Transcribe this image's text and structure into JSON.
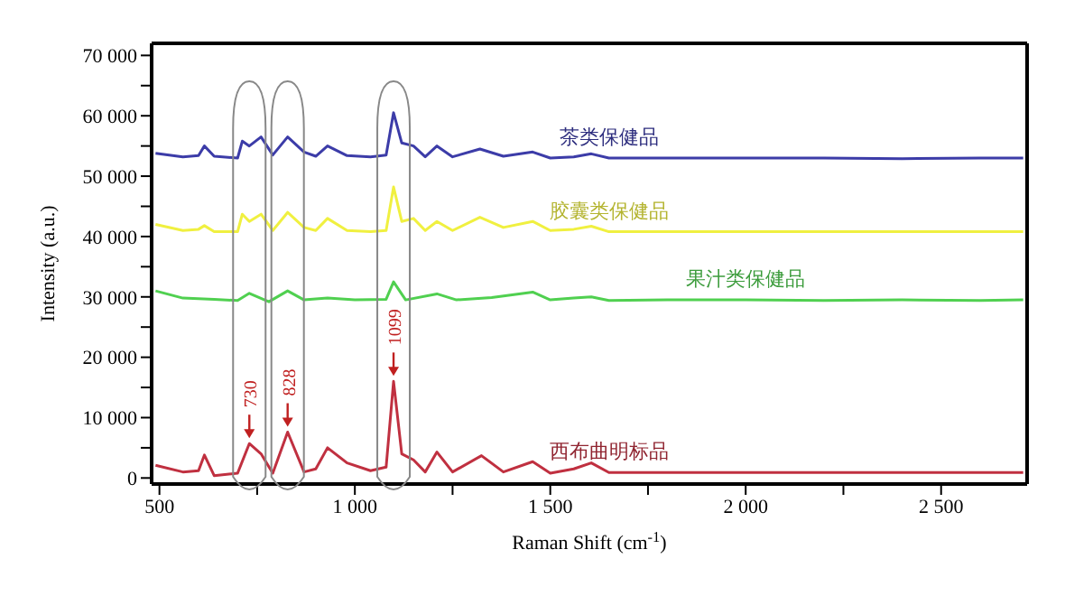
{
  "chart_data": {
    "type": "line",
    "xlabel": "Raman Shift (cm$^{-1}$)",
    "ylabel": "Intensity (a.u.)",
    "xlim": [
      480,
      2720
    ],
    "ylim": [
      -1000,
      72000
    ],
    "xticks": [
      {
        "value": 500,
        "label": "500"
      },
      {
        "value": 750,
        "label": null
      },
      {
        "value": 1000,
        "label": "1 000"
      },
      {
        "value": 1250,
        "label": null
      },
      {
        "value": 1500,
        "label": "1 500"
      },
      {
        "value": 1750,
        "label": null
      },
      {
        "value": 2000,
        "label": "2 000"
      },
      {
        "value": 2250,
        "label": null
      },
      {
        "value": 2500,
        "label": "2 500"
      }
    ],
    "yticks": [
      {
        "value": 0,
        "label": "0"
      },
      {
        "value": 5000,
        "label": null
      },
      {
        "value": 10000,
        "label": "10 000"
      },
      {
        "value": 15000,
        "label": null
      },
      {
        "value": 20000,
        "label": "20 000"
      },
      {
        "value": 25000,
        "label": null
      },
      {
        "value": 30000,
        "label": "30 000"
      },
      {
        "value": 35000,
        "label": null
      },
      {
        "value": 40000,
        "label": "40 000"
      },
      {
        "value": 45000,
        "label": null
      },
      {
        "value": 50000,
        "label": "50 000"
      },
      {
        "value": 55000,
        "label": null
      },
      {
        "value": 60000,
        "label": "60 000"
      },
      {
        "value": 65000,
        "label": null
      },
      {
        "value": 70000,
        "label": "70 000"
      }
    ],
    "marker": "none",
    "line_style": "solid",
    "annotations": [
      {
        "text": "730",
        "x": 730,
        "y": 5700
      },
      {
        "text": "828",
        "x": 828,
        "y": 7600
      },
      {
        "text": "1099",
        "x": 1099,
        "y": 16000
      }
    ],
    "series": [
      {
        "name": "茶类保健品",
        "color": "#3c3ca8",
        "x": [
          490,
          560,
          600,
          615,
          640,
          700,
          712,
          730,
          760,
          790,
          828,
          870,
          900,
          930,
          980,
          1040,
          1080,
          1099,
          1120,
          1150,
          1180,
          1210,
          1250,
          1320,
          1380,
          1455,
          1500,
          1560,
          1605,
          1650,
          1800,
          2000,
          2200,
          2400,
          2600,
          2710
        ],
        "values": [
          53800,
          53200,
          53400,
          55000,
          53300,
          53000,
          55800,
          55000,
          56500,
          53500,
          56500,
          54000,
          53300,
          55000,
          53400,
          53200,
          53500,
          60500,
          55500,
          55000,
          53200,
          55000,
          53200,
          54500,
          53300,
          54000,
          53000,
          53200,
          53700,
          53000,
          53000,
          53000,
          53000,
          52900,
          53000,
          53000
        ]
      },
      {
        "name": "胶囊类保健品",
        "color": "#f0f040",
        "x": [
          490,
          560,
          600,
          615,
          640,
          700,
          712,
          730,
          760,
          790,
          828,
          870,
          900,
          930,
          980,
          1040,
          1080,
          1099,
          1120,
          1150,
          1180,
          1210,
          1250,
          1320,
          1380,
          1455,
          1500,
          1560,
          1605,
          1650,
          1800,
          2000,
          2200,
          2400,
          2600,
          2710
        ],
        "values": [
          42000,
          41000,
          41200,
          41800,
          40800,
          40800,
          43700,
          42500,
          43700,
          41000,
          44000,
          41500,
          41000,
          43000,
          41000,
          40800,
          41000,
          48200,
          42500,
          43000,
          41000,
          42500,
          41000,
          43200,
          41500,
          42500,
          41000,
          41200,
          41700,
          40800,
          40800,
          40800,
          40800,
          40800,
          40800,
          40800
        ]
      },
      {
        "name": "果汁类保健品",
        "color": "#50d050",
        "x": [
          490,
          560,
          640,
          700,
          730,
          780,
          828,
          870,
          930,
          1000,
          1080,
          1099,
          1130,
          1210,
          1260,
          1350,
          1455,
          1500,
          1560,
          1605,
          1650,
          1800,
          2000,
          2200,
          2400,
          2600,
          2710
        ],
        "values": [
          31000,
          29800,
          29600,
          29400,
          30600,
          29200,
          31000,
          29500,
          29800,
          29500,
          29600,
          32500,
          29500,
          30500,
          29500,
          29900,
          30800,
          29500,
          29800,
          30000,
          29400,
          29500,
          29500,
          29400,
          29500,
          29400,
          29500
        ]
      },
      {
        "name": "西布曲明标品",
        "color": "#c03040",
        "x": [
          490,
          560,
          600,
          615,
          640,
          700,
          730,
          760,
          790,
          828,
          870,
          900,
          930,
          980,
          1040,
          1080,
          1099,
          1120,
          1150,
          1180,
          1210,
          1250,
          1324,
          1380,
          1455,
          1500,
          1560,
          1605,
          1650,
          1800,
          2000,
          2200,
          2400,
          2600,
          2710
        ],
        "values": [
          2100,
          1000,
          1200,
          3800,
          400,
          800,
          5700,
          4000,
          800,
          7600,
          1000,
          1500,
          5000,
          2500,
          1200,
          1800,
          16000,
          4000,
          3000,
          1000,
          4300,
          1000,
          3700,
          1000,
          2700,
          800,
          1500,
          2500,
          900,
          900,
          900,
          900,
          900,
          900,
          900
        ]
      }
    ]
  }
}
